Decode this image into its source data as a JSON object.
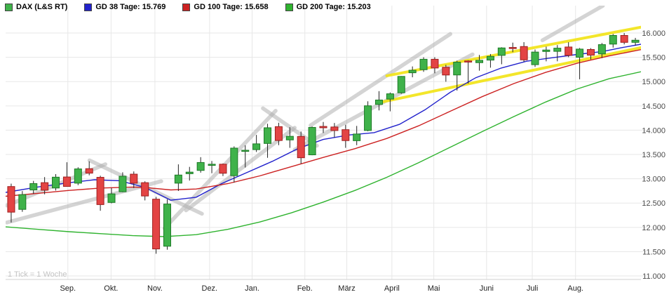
{
  "legend": {
    "items": [
      {
        "label": "DAX (L&S RT)",
        "color": "#3fb24a"
      },
      {
        "label": "GD 38 Tage: 15.769",
        "color": "#2222cc"
      },
      {
        "label": "GD 100 Tage: 15.658",
        "color": "#cc2222"
      },
      {
        "label": "GD 200 Tage: 15.203",
        "color": "#2fb32f"
      }
    ]
  },
  "chart_data": {
    "type": "candlestick",
    "instrument": "DAX (L&S RT)",
    "interval_note": "1 Tick = 1 Woche",
    "y_axis": {
      "side": "right",
      "min": 10928,
      "max": 16564,
      "tick_values": [
        16000,
        15500,
        15000,
        14500,
        14000,
        13500,
        13000,
        12500,
        12000,
        11500,
        11000
      ],
      "tick_labels": [
        "16.000",
        "15.500",
        "15.000",
        "14.500",
        "14.000",
        "13.500",
        "13.000",
        "12.500",
        "12.000",
        "11.500",
        "11.000"
      ]
    },
    "x_axis": {
      "months": [
        {
          "label": "Sep.",
          "f": 0.098
        },
        {
          "label": "Okt.",
          "f": 0.166
        },
        {
          "label": "Nov.",
          "f": 0.235
        },
        {
          "label": "Dez.",
          "f": 0.321
        },
        {
          "label": "Jan.",
          "f": 0.388
        },
        {
          "label": "Feb.",
          "f": 0.471
        },
        {
          "label": "März",
          "f": 0.537
        },
        {
          "label": "April",
          "f": 0.608
        },
        {
          "label": "Mai",
          "f": 0.674
        },
        {
          "label": "Juni",
          "f": 0.757
        },
        {
          "label": "Juli",
          "f": 0.829
        },
        {
          "label": "Aug.",
          "f": 0.897
        }
      ]
    },
    "candles": [
      [
        12840,
        12900,
        12100,
        12313
      ],
      [
        12370,
        12747,
        12320,
        12674
      ],
      [
        12770,
        12956,
        12692,
        12901
      ],
      [
        12920,
        13035,
        12680,
        12765
      ],
      [
        12810,
        13096,
        12758,
        13033
      ],
      [
        13037,
        13340,
        12933,
        12843
      ],
      [
        12910,
        13237,
        12869,
        13203
      ],
      [
        13208,
        13359,
        13072,
        13116
      ],
      [
        13030,
        13063,
        12342,
        12469
      ],
      [
        12513,
        12811,
        12495,
        12689
      ],
      [
        12733,
        13133,
        12723,
        13052
      ],
      [
        13095,
        13151,
        12810,
        12909
      ],
      [
        12920,
        12948,
        12555,
        12646
      ],
      [
        12580,
        12628,
        11457,
        11556
      ],
      [
        11612,
        12577,
        11540,
        12480
      ],
      [
        12910,
        13297,
        12749,
        13077
      ],
      [
        13105,
        13245,
        12963,
        13137
      ],
      [
        13172,
        13445,
        13126,
        13335
      ],
      [
        13291,
        13366,
        13114,
        13299
      ],
      [
        13300,
        13315,
        13056,
        13114
      ],
      [
        13064,
        13667,
        12922,
        13631
      ],
      [
        13577,
        13689,
        13232,
        13587
      ],
      [
        13600,
        13903,
        13552,
        13719
      ],
      [
        13727,
        14132,
        13432,
        14050
      ],
      [
        14073,
        14153,
        13692,
        13788
      ],
      [
        13800,
        14062,
        13637,
        13874
      ],
      [
        13871,
        13973,
        13311,
        13433
      ],
      [
        13493,
        14075,
        13484,
        14057
      ],
      [
        14077,
        14169,
        13942,
        14050
      ],
      [
        14066,
        14148,
        13852,
        13993
      ],
      [
        14011,
        14112,
        13637,
        13786
      ],
      [
        13784,
        14088,
        13691,
        13921
      ],
      [
        13994,
        14595,
        13978,
        14502
      ],
      [
        14531,
        14804,
        14407,
        14621
      ],
      [
        14640,
        14777,
        14388,
        14749
      ],
      [
        14770,
        15114,
        14749,
        15107
      ],
      [
        15182,
        15312,
        15089,
        15234
      ],
      [
        15245,
        15501,
        15201,
        15460
      ],
      [
        15460,
        15502,
        15172,
        15280
      ],
      [
        15296,
        15345,
        14997,
        15136
      ],
      [
        15137,
        15431,
        14816,
        15400
      ],
      [
        15425,
        15439,
        14960,
        15417
      ],
      [
        15390,
        15549,
        15225,
        15438
      ],
      [
        15443,
        15568,
        15287,
        15520
      ],
      [
        15540,
        15707,
        15357,
        15693
      ],
      [
        15703,
        15802,
        15606,
        15693
      ],
      [
        15722,
        15812,
        15406,
        15448
      ],
      [
        15349,
        15661,
        15303,
        15608
      ],
      [
        15620,
        15720,
        15417,
        15650
      ],
      [
        15623,
        15752,
        15418,
        15688
      ],
      [
        15712,
        15811,
        15503,
        15540
      ],
      [
        15501,
        15692,
        15048,
        15669
      ],
      [
        15661,
        15689,
        15455,
        15544
      ],
      [
        15570,
        15795,
        15485,
        15761
      ],
      [
        15772,
        15980,
        15700,
        15950
      ],
      [
        15950,
        15999,
        15766,
        15808
      ],
      [
        15808,
        15900,
        15740,
        15852
      ]
    ],
    "moving_averages": [
      {
        "id": "gd38",
        "name": "GD 38 Tage",
        "value_label": "15.769",
        "color": "#2222cc",
        "points": [
          [
            0,
            12720
          ],
          [
            0.05,
            12830
          ],
          [
            0.1,
            12920
          ],
          [
            0.14,
            12980
          ],
          [
            0.18,
            12960
          ],
          [
            0.22,
            12820
          ],
          [
            0.26,
            12560
          ],
          [
            0.3,
            12620
          ],
          [
            0.34,
            12900
          ],
          [
            0.38,
            13130
          ],
          [
            0.42,
            13360
          ],
          [
            0.46,
            13620
          ],
          [
            0.5,
            13810
          ],
          [
            0.54,
            13900
          ],
          [
            0.58,
            13950
          ],
          [
            0.62,
            14120
          ],
          [
            0.66,
            14420
          ],
          [
            0.7,
            14780
          ],
          [
            0.74,
            15080
          ],
          [
            0.78,
            15280
          ],
          [
            0.82,
            15420
          ],
          [
            0.86,
            15490
          ],
          [
            0.9,
            15560
          ],
          [
            0.94,
            15620
          ],
          [
            0.97,
            15700
          ],
          [
            1,
            15769
          ]
        ]
      },
      {
        "id": "gd100",
        "name": "GD 100 Tage",
        "value_label": "15.658",
        "color": "#cc2222",
        "points": [
          [
            0,
            12640
          ],
          [
            0.05,
            12700
          ],
          [
            0.1,
            12760
          ],
          [
            0.15,
            12810
          ],
          [
            0.2,
            12830
          ],
          [
            0.22,
            12820
          ],
          [
            0.26,
            12770
          ],
          [
            0.3,
            12790
          ],
          [
            0.35,
            12900
          ],
          [
            0.4,
            13060
          ],
          [
            0.45,
            13250
          ],
          [
            0.5,
            13440
          ],
          [
            0.55,
            13620
          ],
          [
            0.6,
            13830
          ],
          [
            0.65,
            14090
          ],
          [
            0.7,
            14390
          ],
          [
            0.75,
            14690
          ],
          [
            0.8,
            14960
          ],
          [
            0.85,
            15190
          ],
          [
            0.9,
            15380
          ],
          [
            0.95,
            15530
          ],
          [
            1,
            15658
          ]
        ]
      },
      {
        "id": "gd200",
        "name": "GD 200 Tage",
        "value_label": "15.203",
        "color": "#2fb32f",
        "points": [
          [
            0,
            12010
          ],
          [
            0.05,
            11960
          ],
          [
            0.1,
            11910
          ],
          [
            0.15,
            11870
          ],
          [
            0.2,
            11830
          ],
          [
            0.25,
            11810
          ],
          [
            0.3,
            11850
          ],
          [
            0.35,
            11960
          ],
          [
            0.4,
            12110
          ],
          [
            0.45,
            12300
          ],
          [
            0.5,
            12520
          ],
          [
            0.55,
            12760
          ],
          [
            0.6,
            13030
          ],
          [
            0.65,
            13330
          ],
          [
            0.7,
            13650
          ],
          [
            0.75,
            13970
          ],
          [
            0.8,
            14280
          ],
          [
            0.85,
            14580
          ],
          [
            0.9,
            14850
          ],
          [
            0.95,
            15060
          ],
          [
            1,
            15203
          ]
        ]
      }
    ],
    "trend_lines": [
      {
        "color": "gray",
        "x1": 0.002,
        "v1": 12450,
        "x2": 0.157,
        "v2": 13300
      },
      {
        "color": "gray",
        "x1": 0.002,
        "v1": 12100,
        "x2": 0.245,
        "v2": 12950
      },
      {
        "color": "gray",
        "x1": 0.132,
        "v1": 13380,
        "x2": 0.309,
        "v2": 12280
      },
      {
        "color": "gray",
        "x1": 0.25,
        "v1": 11980,
        "x2": 0.425,
        "v2": 14400
      },
      {
        "color": "gray",
        "x1": 0.284,
        "v1": 12350,
        "x2": 0.455,
        "v2": 14050
      },
      {
        "color": "gray",
        "x1": 0.405,
        "v1": 14450,
        "x2": 0.49,
        "v2": 13680
      },
      {
        "color": "gray",
        "x1": 0.455,
        "v1": 13600,
        "x2": 0.735,
        "v2": 15560
      },
      {
        "color": "gray",
        "x1": 0.48,
        "v1": 14100,
        "x2": 0.7,
        "v2": 15980
      },
      {
        "color": "gray",
        "x1": 0.845,
        "v1": 15850,
        "x2": 0.94,
        "v2": 16560
      },
      {
        "color": "yellow",
        "x1": 0.585,
        "v1": 14560,
        "x2": 1.0,
        "v2": 15700
      },
      {
        "color": "yellow",
        "x1": 0.6,
        "v1": 15120,
        "x2": 1.0,
        "v2": 16120
      }
    ],
    "colors": {
      "background": "#ffffff",
      "grid": "#e7e7e7",
      "axis_text": "#4a4a4a",
      "month_text": "#222222",
      "wick": "#222222",
      "up_fill": "#3fb24a",
      "up_stroke": "#1d7a26",
      "down_fill": "#e34444",
      "down_stroke": "#9e1f1f",
      "trend_gray": "#aaaaaa",
      "trend_yellow": "#f2e313"
    }
  }
}
